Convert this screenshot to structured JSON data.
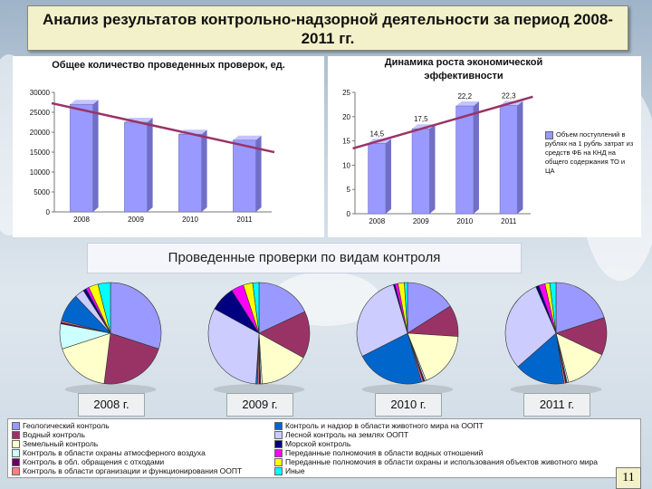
{
  "slide": {
    "title": "Анализ результатов контрольно-надзорной деятельности за период 2008-2011 гг.",
    "page_number": "11",
    "section_banner": "Проведенные проверки по видам контроля"
  },
  "chart_data": [
    {
      "type": "bar",
      "title": "Общее количество проведенных проверок, ед.",
      "categories": [
        "2008",
        "2009",
        "2010",
        "2011"
      ],
      "values": [
        27000,
        22500,
        19500,
        18000
      ],
      "trend_line": true,
      "ylim": [
        0,
        30000
      ],
      "yticks": [
        "0",
        "5000",
        "10000",
        "15000",
        "20000",
        "25000",
        "30000"
      ]
    },
    {
      "type": "bar",
      "title": "Динамика роста экономической эффективности",
      "categories": [
        "2008",
        "2009",
        "2010",
        "2011"
      ],
      "values": [
        14.5,
        17.5,
        22.2,
        22.3
      ],
      "data_labels": [
        "14,5",
        "17,5",
        "22,2",
        "22,3"
      ],
      "trend_line": true,
      "ylim": [
        0,
        25
      ],
      "yticks": [
        "0",
        "5",
        "10",
        "15",
        "20",
        "25"
      ],
      "legend": "Объем поступлений в рублях на 1 рубль затрат из средств ФБ на КНД на общего содержания ТО и ЦА"
    },
    {
      "type": "pie",
      "year_label": "2008 г.",
      "categories": [
        "Геологический контроль",
        "Водный контроль",
        "Земельный контроль",
        "Контроль в области охраны атмосферного воздуха",
        "Контроль в обл. обращения с отходами",
        "Контроль в области организации и функционирования ООПТ",
        "Контроль и надзор в области животного мира на ООПТ",
        "Лесной контроль на землях ООПТ",
        "Морской контроль",
        "Переданные полномочия в области водных отношений",
        "Переданные полномочия в области охраны и использования объектов животного мира",
        "Иные"
      ],
      "values": [
        30,
        22,
        18,
        8,
        0.5,
        0.5,
        9,
        3,
        1,
        1,
        3,
        4
      ]
    },
    {
      "type": "pie",
      "year_label": "2009 г.",
      "categories": [
        "Геологический контроль",
        "Водный контроль",
        "Земельный контроль",
        "Контроль в области охраны атмосферного воздуха",
        "Контроль в обл. обращения с отходами",
        "Контроль в области организации и функционирования ООПТ",
        "Контроль и надзор в области животного мира на ООПТ",
        "Лесной контроль на землях ООПТ",
        "Морской контроль",
        "Переданные полномочия в области водных отношений",
        "Переданные полномочия в области охраны и использования объектов животного мира",
        "Иные"
      ],
      "values": [
        18,
        15,
        16,
        0.5,
        0.5,
        0.5,
        0.5,
        32,
        8,
        4,
        3,
        2
      ]
    },
    {
      "type": "pie",
      "year_label": "2010 г.",
      "categories": [
        "Геологический контроль",
        "Водный контроль",
        "Земельный контроль",
        "Контроль в области охраны атмосферного воздуха",
        "Контроль в обл. обращения с отходами",
        "Контроль в области организации и функционирования ООПТ",
        "Контроль и надзор в области животного мира на ООПТ",
        "Лесной контроль на землях ООПТ",
        "Морской контроль",
        "Переданные полномочия в области водных отношений",
        "Переданные полномочия в области охраны и использования объектов животного мира",
        "Иные"
      ],
      "values": [
        16,
        10,
        18,
        0.5,
        0.5,
        0.5,
        22,
        28,
        0.5,
        1,
        2,
        1
      ]
    },
    {
      "type": "pie",
      "year_label": "2011 г.",
      "categories": [
        "Геологический контроль",
        "Водный контроль",
        "Земельный контроль",
        "Контроль в области охраны атмосферного воздуха",
        "Контроль в обл. обращения с отходами",
        "Контроль в области организации и функционирования ООПТ",
        "Контроль и надзор в области животного мира на ООПТ",
        "Лесной контроль на землях ООПТ",
        "Морской контроль",
        "Переданные полномочия в области водных отношений",
        "Переданные полномочия в области охраны и использования объектов животного мира",
        "Иные"
      ],
      "values": [
        20,
        12,
        14,
        0.5,
        0.5,
        0.5,
        16,
        30,
        1,
        2,
        1.5,
        2
      ]
    }
  ],
  "legend": {
    "left": [
      {
        "label": "Геологический контроль",
        "color": "#9999ff"
      },
      {
        "label": "Водный контроль",
        "color": "#993366"
      },
      {
        "label": "Земельный контроль",
        "color": "#ffffcc"
      },
      {
        "label": "Контроль в области охраны атмосферного воздуха",
        "color": "#ccffff"
      },
      {
        "label": "Контроль в обл. обращения с отходами",
        "color": "#660066"
      },
      {
        "label": "Контроль в области организации и функционирования ООПТ",
        "color": "#ff8080"
      }
    ],
    "right": [
      {
        "label": "Контроль и надзор в области животного мира на ООПТ",
        "color": "#0066cc"
      },
      {
        "label": "Лесной контроль на землях ООПТ",
        "color": "#ccccff"
      },
      {
        "label": "Морской контроль",
        "color": "#000080"
      },
      {
        "label": "Переданные полномочия в области водных отношений",
        "color": "#ff00ff"
      },
      {
        "label": "Переданные полномочия в области охраны и использования объектов животного мира",
        "color": "#ffff00"
      },
      {
        "label": "Иные",
        "color": "#00ffff"
      }
    ]
  },
  "colors": {
    "bar1": "#9999ff",
    "trend": "#993366",
    "pie_order": [
      "#9999ff",
      "#993366",
      "#ffffcc",
      "#ccffff",
      "#660066",
      "#ff8080",
      "#0066cc",
      "#ccccff",
      "#000080",
      "#ff00ff",
      "#ffff00",
      "#00ffff"
    ]
  }
}
